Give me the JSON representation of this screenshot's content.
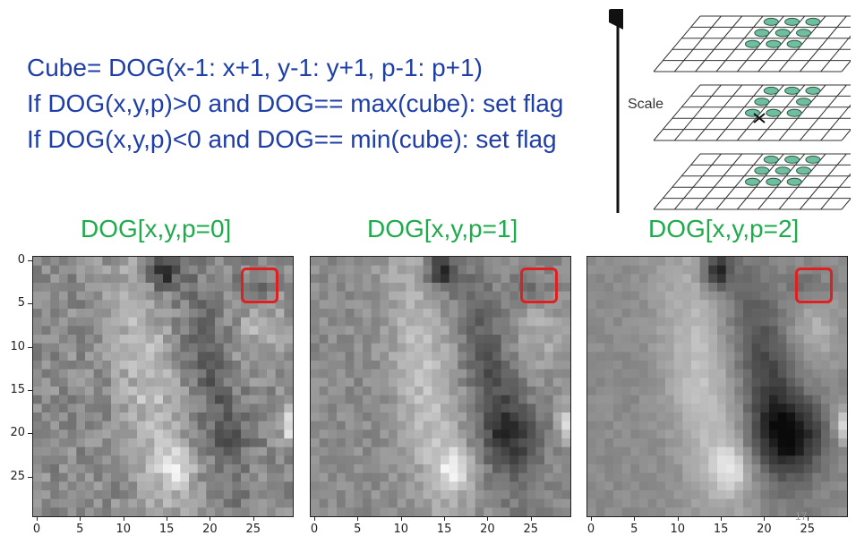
{
  "code_lines": [
    "Cube= DOG(x-1: x+1, y-1: y+1, p-1: p+1)",
    "If DOG(x,y,p)>0 and DOG== max(cube): set flag",
    "If DOG(x,y,p)<0 and DOG== min(cube): set flag"
  ],
  "diagram": {
    "scale_label": "Scale"
  },
  "panels": [
    {
      "title": "DOG[x,y,p=0]"
    },
    {
      "title": "DOG[x,y,p=1]"
    },
    {
      "title": "DOG[x,y,p=2]"
    }
  ],
  "axis": {
    "y_ticks": [
      "0",
      "5",
      "10",
      "15",
      "20",
      "25"
    ],
    "x_ticks": [
      "0",
      "5",
      "10",
      "15",
      "20",
      "25"
    ]
  },
  "page_number": "17",
  "colors": {
    "code_text": "#1f3fa8",
    "titles": "#1faa4c",
    "marker": "#e02020"
  }
}
